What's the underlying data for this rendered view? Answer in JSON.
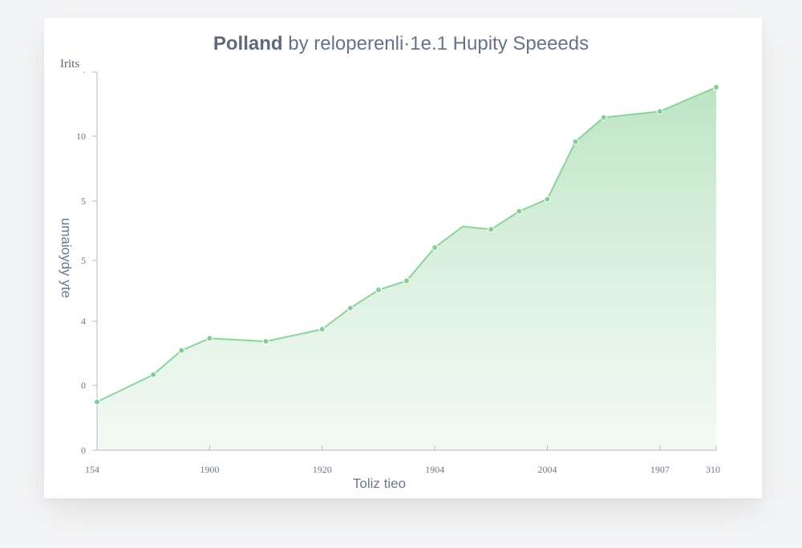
{
  "chart_data": {
    "type": "area",
    "title": "Polland by reloperenli·1e.1 Hupity Speeeds",
    "title_bold": "Polland",
    "title_rest": " by reloperenli·1e.1 Hupity Speeeds",
    "xlabel": "Toliz tieo",
    "ylabel": "umaioydy yte",
    "unit_label": "Irits",
    "y_tick_labels": [
      "0",
      "0",
      "4",
      "5",
      "5",
      "10",
      "·"
    ],
    "x_tick_labels": [
      "154",
      "1900",
      "1920",
      "1904",
      "2004",
      "1907",
      "310"
    ],
    "x_tick_positions": [
      0,
      4,
      8,
      12,
      16,
      20,
      22
    ],
    "grid": false,
    "legend": "none",
    "color": "#8fd19e",
    "xlim": [
      0,
      22
    ],
    "ylim": [
      0,
      12.5
    ],
    "x": [
      0,
      2,
      3,
      4,
      6,
      8,
      9,
      10,
      11,
      12,
      13,
      14,
      15,
      16,
      17,
      18,
      20,
      22
    ],
    "y": [
      1.6,
      2.5,
      3.3,
      3.7,
      3.6,
      4.0,
      4.7,
      5.3,
      5.6,
      6.7,
      7.4,
      7.3,
      7.9,
      8.3,
      10.2,
      11.0,
      11.2,
      12.0
    ],
    "markers": [
      true,
      true,
      true,
      true,
      true,
      true,
      true,
      true,
      true,
      true,
      false,
      true,
      true,
      true,
      true,
      true,
      true,
      true
    ]
  }
}
